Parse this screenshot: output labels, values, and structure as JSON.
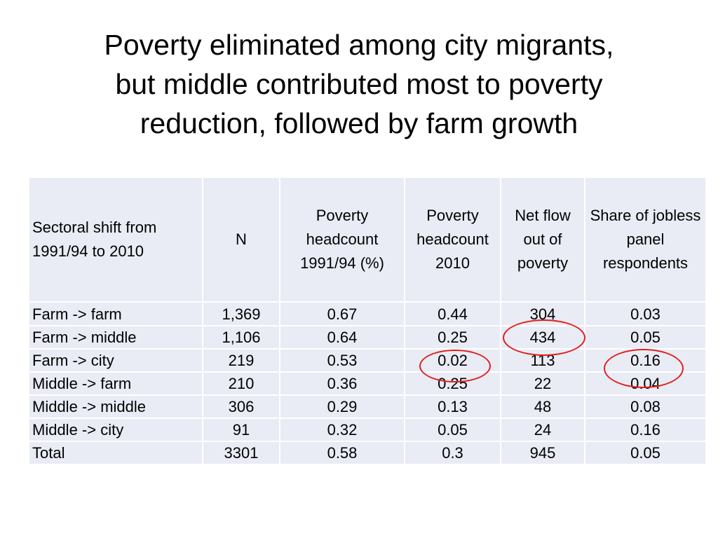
{
  "slide": {
    "title_lines": [
      "Poverty eliminated among city migrants,",
      "but middle contributed most to poverty",
      "reduction, followed by farm growth"
    ]
  },
  "table": {
    "headers": [
      "Sectoral shift from 1991/94 to 2010",
      "N",
      "Poverty headcount 1991/94 (%)",
      "Poverty headcount 2010",
      "Net flow out of poverty",
      "Share of jobless panel respondents"
    ],
    "rows": [
      [
        "Farm -> farm",
        "1,369",
        "0.67",
        "0.44",
        "304",
        "0.03"
      ],
      [
        "Farm -> middle",
        "1,106",
        "0.64",
        "0.25",
        "434",
        "0.05"
      ],
      [
        "Farm -> city",
        "219",
        "0.53",
        "0.02",
        "113",
        "0.16"
      ],
      [
        "Middle -> farm",
        "210",
        "0.36",
        "0.25",
        "22",
        "0.04"
      ],
      [
        "Middle -> middle",
        "306",
        "0.29",
        "0.13",
        "48",
        "0.08"
      ],
      [
        "Middle -> city",
        "91",
        "0.32",
        "0.05",
        "24",
        "0.16"
      ],
      [
        "Total",
        "3301",
        "0.58",
        "0.3",
        "945",
        "0.05"
      ]
    ]
  },
  "highlights": {
    "color": "#e0201c",
    "circled_cells": [
      {
        "row": "Farm -> middle",
        "column": "Net flow out of poverty",
        "value": "434"
      },
      {
        "row": "Farm -> city",
        "column": "Poverty headcount 2010",
        "value": "0.02"
      },
      {
        "row": "Farm -> city",
        "column": "Share of jobless panel respondents",
        "value": "0.16"
      }
    ]
  },
  "colors": {
    "cell_background": "#e9ecf5",
    "text": "#000000",
    "background": "#ffffff"
  }
}
